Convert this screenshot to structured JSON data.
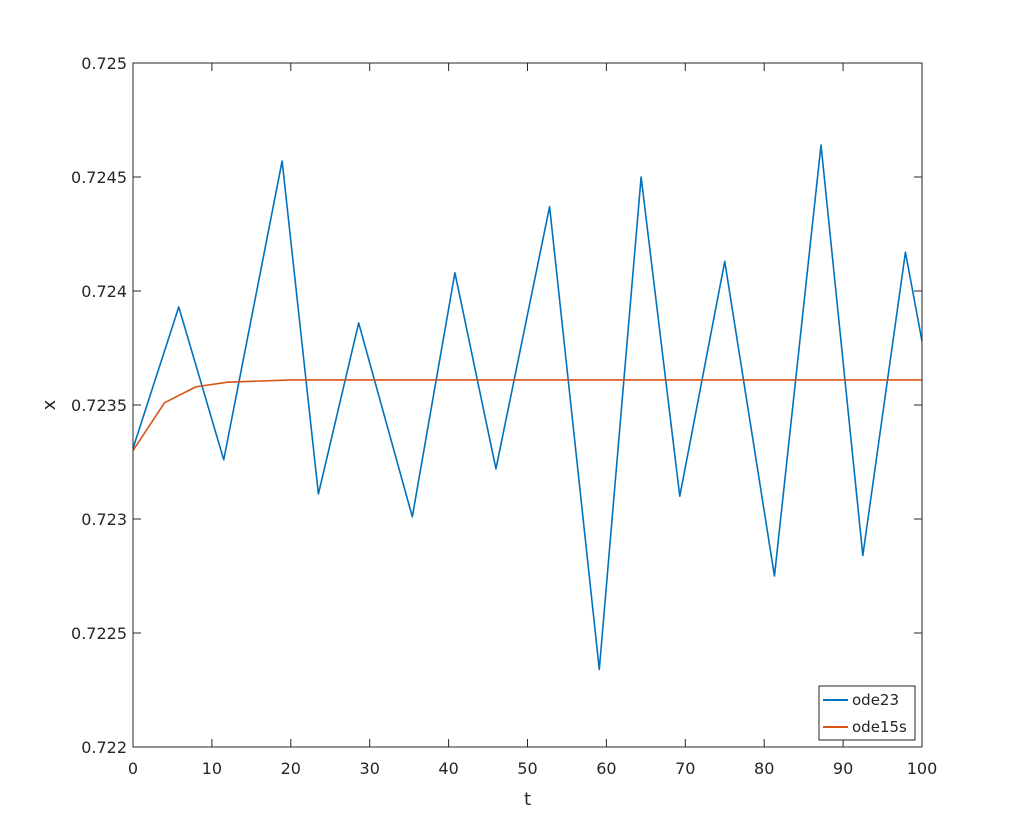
{
  "chart_data": {
    "type": "line",
    "title": "",
    "xlabel": "t",
    "ylabel": "x",
    "xlim": [
      0,
      100
    ],
    "ylim": [
      0.722,
      0.725
    ],
    "xticks": [
      0,
      10,
      20,
      30,
      40,
      50,
      60,
      70,
      80,
      90,
      100
    ],
    "xtick_labels": [
      "0",
      "10",
      "20",
      "30",
      "40",
      "50",
      "60",
      "70",
      "80",
      "90",
      "100"
    ],
    "yticks": [
      0.722,
      0.7225,
      0.723,
      0.7235,
      0.724,
      0.7245,
      0.725
    ],
    "ytick_labels": [
      "0.722",
      "0.7225",
      "0.723",
      "0.7235",
      "0.724",
      "0.7245",
      "0.725"
    ],
    "grid": false,
    "box": true,
    "legend_position": "bottom-right",
    "series": [
      {
        "name": "ode23",
        "color": "#0072BD",
        "x": [
          0,
          5.8,
          11.5,
          18.9,
          23.5,
          28.6,
          35.4,
          40.8,
          46.0,
          52.8,
          59.1,
          64.4,
          69.3,
          75.0,
          81.3,
          87.2,
          92.5,
          97.9,
          100
        ],
        "y": [
          0.72331,
          0.72393,
          0.72326,
          0.72457,
          0.72311,
          0.72386,
          0.72301,
          0.72408,
          0.72322,
          0.72437,
          0.72234,
          0.7245,
          0.7231,
          0.72413,
          0.72275,
          0.72464,
          0.72284,
          0.72417,
          0.72378
        ]
      },
      {
        "name": "ode15s",
        "color": "#D95319",
        "x": [
          0,
          4,
          8,
          12,
          20,
          30,
          40,
          50,
          60,
          70,
          80,
          90,
          100
        ],
        "y": [
          0.7233,
          0.72351,
          0.72358,
          0.7236,
          0.72361,
          0.72361,
          0.72361,
          0.72361,
          0.72361,
          0.72361,
          0.72361,
          0.72361,
          0.72361
        ]
      }
    ]
  }
}
